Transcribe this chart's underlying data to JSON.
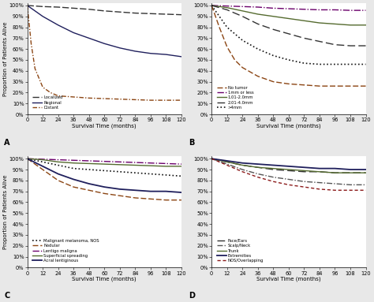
{
  "xlabel": "Survival Time (months)",
  "ylabel": "Proportion of Patients Alive",
  "xticks": [
    0,
    12,
    24,
    36,
    48,
    60,
    72,
    84,
    96,
    108,
    120
  ],
  "ytick_vals": [
    0,
    10,
    20,
    30,
    40,
    50,
    60,
    70,
    80,
    90,
    100
  ],
  "ylabels": [
    "0%",
    "10%",
    "20%",
    "30%",
    "40%",
    "50%",
    "60%",
    "70%",
    "80%",
    "90%",
    "100%"
  ],
  "panelA": {
    "curves": [
      {
        "label": "Localized",
        "color": "#333333",
        "linestyle": "dashed",
        "dash_seq": [
          6,
          2
        ],
        "lw": 1.0,
        "x": [
          0,
          6,
          12,
          24,
          36,
          48,
          60,
          72,
          84,
          96,
          108,
          120
        ],
        "y": [
          100,
          99.5,
          99,
          98.5,
          97.5,
          96.5,
          95,
          94,
          93,
          92.5,
          92,
          91.5
        ]
      },
      {
        "label": "Regional",
        "color": "#1f1f5c",
        "linestyle": "solid",
        "dash_seq": null,
        "lw": 1.0,
        "x": [
          0,
          6,
          12,
          24,
          36,
          48,
          60,
          72,
          84,
          96,
          108,
          120
        ],
        "y": [
          100,
          95,
          90,
          82,
          75,
          70,
          65,
          61,
          58,
          56,
          55,
          53
        ]
      },
      {
        "label": "Distant",
        "color": "#8B4513",
        "linestyle": "dashdot",
        "dash_seq": [
          4,
          1.5,
          1,
          1.5
        ],
        "lw": 1.0,
        "x": [
          0,
          3,
          6,
          12,
          18,
          24,
          36,
          48,
          60,
          72,
          84,
          96,
          108,
          120
        ],
        "y": [
          100,
          65,
          42,
          25,
          20,
          17,
          16,
          15,
          14.5,
          14,
          13.5,
          13,
          13,
          13
        ]
      }
    ]
  },
  "panelB": {
    "curves": [
      {
        "label": "No tumor",
        "color": "#8B4513",
        "linestyle": "dashed",
        "dash_seq": [
          5,
          2
        ],
        "lw": 1.0,
        "x": [
          0,
          6,
          12,
          18,
          24,
          36,
          48,
          60,
          72,
          84,
          96,
          108,
          120
        ],
        "y": [
          100,
          80,
          62,
          50,
          43,
          35,
          30,
          28,
          27,
          26,
          26,
          26,
          26
        ]
      },
      {
        "label": "1mm or less",
        "color": "#6B006B",
        "linestyle": "dashdot",
        "dash_seq": [
          6,
          1.5,
          1,
          1.5
        ],
        "lw": 1.0,
        "x": [
          0,
          12,
          24,
          36,
          48,
          60,
          72,
          84,
          96,
          108,
          120
        ],
        "y": [
          100,
          99.5,
          99,
          98.5,
          97.5,
          97,
          96.5,
          96,
          96,
          95.5,
          95.5
        ]
      },
      {
        "label": "1.01-2.0mm",
        "color": "#556B2F",
        "linestyle": "solid",
        "dash_seq": null,
        "lw": 1.0,
        "x": [
          0,
          12,
          24,
          36,
          48,
          60,
          72,
          84,
          96,
          108,
          120
        ],
        "y": [
          100,
          98,
          95,
          92,
          90,
          88,
          86,
          84,
          83,
          82,
          82
        ]
      },
      {
        "label": "2.01-4.0mm",
        "color": "#333333",
        "linestyle": "dashed",
        "dash_seq": [
          7,
          3
        ],
        "lw": 1.0,
        "x": [
          0,
          12,
          24,
          36,
          48,
          60,
          72,
          84,
          96,
          108,
          120
        ],
        "y": [
          100,
          96,
          90,
          83,
          78,
          74,
          70,
          67,
          64,
          63,
          63
        ]
      },
      {
        "label": ">4mm",
        "color": "#111111",
        "linestyle": "dotted",
        "dash_seq": null,
        "lw": 1.2,
        "x": [
          0,
          6,
          12,
          24,
          36,
          48,
          60,
          72,
          84,
          96,
          108,
          120
        ],
        "y": [
          100,
          90,
          80,
          68,
          60,
          54,
          50,
          47,
          46,
          46,
          46,
          46
        ]
      }
    ]
  },
  "panelC": {
    "curves": [
      {
        "label": "Malignant melanoma, NOS",
        "color": "#111111",
        "linestyle": "dotted",
        "dash_seq": null,
        "lw": 1.2,
        "x": [
          0,
          12,
          24,
          36,
          48,
          60,
          72,
          84,
          96,
          108,
          120
        ],
        "y": [
          100,
          97,
          94,
          91,
          90,
          89,
          88,
          87,
          86,
          85,
          84
        ]
      },
      {
        "label": "Nodular",
        "color": "#8B4513",
        "linestyle": "dashed",
        "dash_seq": [
          5,
          2
        ],
        "lw": 1.0,
        "x": [
          0,
          12,
          24,
          36,
          48,
          60,
          72,
          84,
          96,
          108,
          120
        ],
        "y": [
          100,
          90,
          80,
          74,
          71,
          68,
          66,
          64,
          63,
          62,
          62
        ]
      },
      {
        "label": "Lentigo maligna",
        "color": "#6B006B",
        "linestyle": "dashdot",
        "dash_seq": [
          6,
          1.5,
          1,
          1.5
        ],
        "lw": 1.0,
        "x": [
          0,
          12,
          24,
          36,
          48,
          60,
          72,
          84,
          96,
          108,
          120
        ],
        "y": [
          100,
          99.5,
          99,
          98.5,
          98,
          97.5,
          97,
          96.5,
          96,
          95.5,
          95
        ]
      },
      {
        "label": "Superficial spreading",
        "color": "#556B2F",
        "linestyle": "solid",
        "dash_seq": null,
        "lw": 1.0,
        "x": [
          0,
          12,
          24,
          36,
          48,
          60,
          72,
          84,
          96,
          108,
          120
        ],
        "y": [
          100,
          99,
          97,
          96,
          95.5,
          95,
          94.5,
          94,
          93.5,
          93,
          93
        ]
      },
      {
        "label": "Acral lentiginous",
        "color": "#1f1f5c",
        "linestyle": "solid",
        "dash_seq": null,
        "lw": 1.3,
        "x": [
          0,
          12,
          24,
          36,
          48,
          60,
          72,
          84,
          96,
          108,
          120
        ],
        "y": [
          100,
          93,
          86,
          81,
          77,
          74,
          72,
          71,
          70,
          70,
          69
        ]
      }
    ]
  },
  "panelD": {
    "curves": [
      {
        "label": "Face/Ears",
        "color": "#333333",
        "linestyle": "dashed",
        "dash_seq": [
          7,
          3
        ],
        "lw": 1.0,
        "x": [
          0,
          12,
          24,
          36,
          48,
          60,
          72,
          84,
          96,
          108,
          120
        ],
        "y": [
          100,
          97,
          94,
          92,
          90,
          89,
          88,
          88,
          87,
          87,
          87
        ]
      },
      {
        "label": "Scalp/Neck",
        "color": "#555555",
        "linestyle": "dashdot",
        "dash_seq": [
          5,
          1.5,
          1,
          1.5
        ],
        "lw": 1.0,
        "x": [
          0,
          12,
          24,
          36,
          48,
          60,
          72,
          84,
          96,
          108,
          120
        ],
        "y": [
          100,
          95,
          90,
          86,
          83,
          81,
          79,
          78,
          77,
          76,
          76
        ]
      },
      {
        "label": "Trunk",
        "color": "#556B2F",
        "linestyle": "solid",
        "dash_seq": null,
        "lw": 1.0,
        "x": [
          0,
          12,
          24,
          36,
          48,
          60,
          72,
          84,
          96,
          108,
          120
        ],
        "y": [
          100,
          97,
          94,
          92,
          91,
          90,
          89,
          88,
          87,
          87,
          87
        ]
      },
      {
        "label": "Extremities",
        "color": "#1f1f5c",
        "linestyle": "solid",
        "dash_seq": null,
        "lw": 1.3,
        "x": [
          0,
          12,
          24,
          36,
          48,
          60,
          72,
          84,
          96,
          108,
          120
        ],
        "y": [
          100,
          98,
          96,
          95,
          94,
          93,
          92,
          91,
          91,
          90,
          90
        ]
      },
      {
        "label": "NOS/Overlapping",
        "color": "#8B1a1a",
        "linestyle": "dashed",
        "dash_seq": [
          3,
          2
        ],
        "lw": 1.0,
        "x": [
          0,
          12,
          24,
          36,
          48,
          60,
          72,
          84,
          96,
          108,
          120
        ],
        "y": [
          100,
          94,
          88,
          83,
          79,
          76,
          74,
          72,
          71,
          71,
          71
        ]
      }
    ]
  },
  "bg_color": "#e8e8e8",
  "plot_bg": "#ffffff",
  "tick_fontsize": 4.8,
  "label_fontsize": 5.0,
  "legend_fontsize": 3.8,
  "panel_label_fontsize": 7
}
